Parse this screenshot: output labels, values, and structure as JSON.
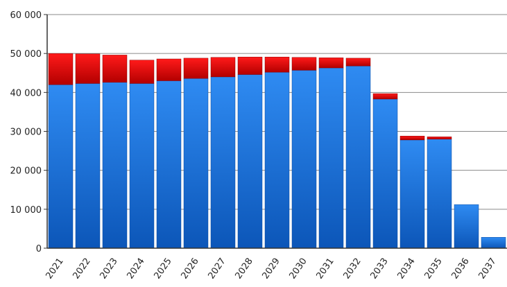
{
  "chart_data": {
    "type": "bar",
    "stacked": true,
    "categories": [
      "2021",
      "2022",
      "2023",
      "2024",
      "2025",
      "2026",
      "2027",
      "2028",
      "2029",
      "2030",
      "2031",
      "2032",
      "2033",
      "2034",
      "2035",
      "2036",
      "2037"
    ],
    "series": [
      {
        "color": "#1a72e0",
        "values": [
          42000,
          42300,
          42600,
          42300,
          43000,
          43600,
          44000,
          44600,
          45200,
          45700,
          46300,
          46800,
          38300,
          27800,
          28000,
          11200,
          2800
        ]
      },
      {
        "color": "#d81010",
        "values": [
          8000,
          7600,
          7000,
          6000,
          5600,
          5200,
          5000,
          4500,
          3900,
          3300,
          2600,
          2000,
          1400,
          1000,
          600,
          0,
          0
        ]
      }
    ],
    "y_ticks": [
      "0",
      "10 000",
      "20 000",
      "30 000",
      "40 000",
      "50 000",
      "60 000"
    ],
    "ylim": [
      0,
      60000
    ],
    "grid": true,
    "legend": "none"
  }
}
